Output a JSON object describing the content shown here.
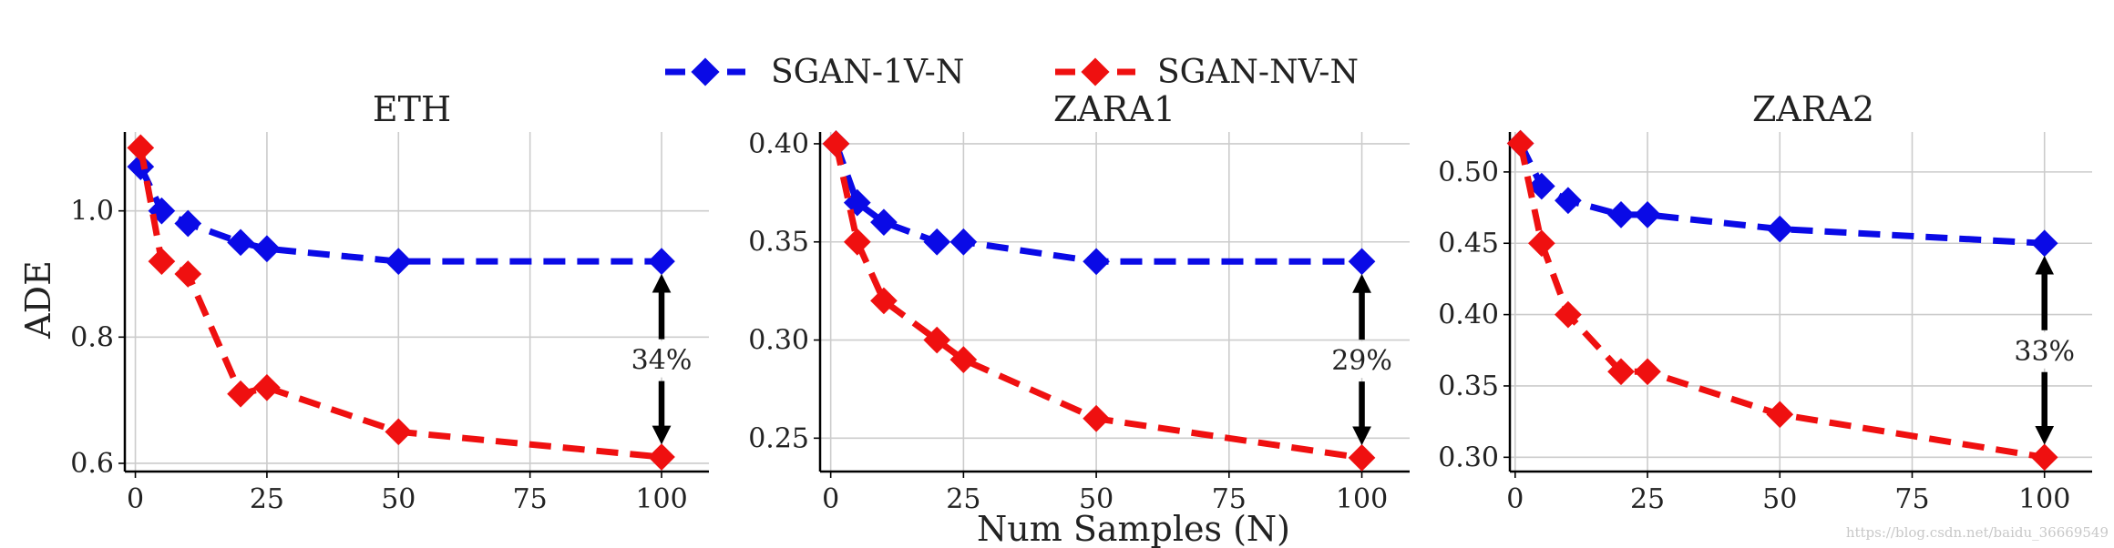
{
  "colors": {
    "series_1v": "#0a0ae6",
    "series_nv": "#ef1010",
    "grid": "#cccccc",
    "axis": "#000000",
    "arrow": "#000000"
  },
  "legend": [
    {
      "name": "SGAN-1V-N",
      "color": "#0a0ae6"
    },
    {
      "name": "SGAN-NV-N",
      "color": "#ef1010"
    }
  ],
  "shared_ylabel": "ADE",
  "shared_xlabel": "Num Samples (N)",
  "watermark": "https://blog.csdn.net/baidu_36669549",
  "chart_data": [
    {
      "type": "line",
      "title": "ETH",
      "ylabel": "ADE",
      "xlabel": "",
      "xlim": [
        -2,
        109
      ],
      "ylim": [
        0.587,
        1.125
      ],
      "xticks": [
        0,
        25,
        50,
        75,
        100
      ],
      "xtick_labels": [
        "0",
        "25",
        "50",
        "75",
        "100"
      ],
      "yticks": [
        0.6,
        0.8,
        1.0
      ],
      "ytick_labels": [
        "0.6",
        "0.8",
        "1.0"
      ],
      "x": [
        1,
        5,
        10,
        20,
        25,
        50,
        100
      ],
      "series": [
        {
          "name": "SGAN-1V-N",
          "values": [
            1.07,
            1.0,
            0.98,
            0.95,
            0.94,
            0.92,
            0.92
          ]
        },
        {
          "name": "SGAN-NV-N",
          "values": [
            1.1,
            0.92,
            0.9,
            0.71,
            0.72,
            0.65,
            0.61
          ]
        }
      ],
      "annotation": {
        "text": "34%",
        "x": 100,
        "from": 0.92,
        "to": 0.61
      }
    },
    {
      "type": "line",
      "title": "ZARA1",
      "ylabel": "",
      "xlabel": "Num Samples (N)",
      "xlim": [
        -2,
        109
      ],
      "ylim": [
        0.233,
        0.406
      ],
      "xticks": [
        0,
        25,
        50,
        75,
        100
      ],
      "xtick_labels": [
        "0",
        "25",
        "50",
        "75",
        "100"
      ],
      "yticks": [
        0.25,
        0.3,
        0.35,
        0.4
      ],
      "ytick_labels": [
        "0.25",
        "0.30",
        "0.35",
        "0.40"
      ],
      "x": [
        1,
        5,
        10,
        20,
        25,
        50,
        100
      ],
      "series": [
        {
          "name": "SGAN-1V-N",
          "values": [
            0.4,
            0.37,
            0.36,
            0.35,
            0.35,
            0.34,
            0.34
          ]
        },
        {
          "name": "SGAN-NV-N",
          "values": [
            0.4,
            0.35,
            0.32,
            0.3,
            0.29,
            0.26,
            0.24
          ]
        }
      ],
      "annotation": {
        "text": "29%",
        "x": 100,
        "from": 0.34,
        "to": 0.24
      }
    },
    {
      "type": "line",
      "title": "ZARA2",
      "ylabel": "",
      "xlabel": "",
      "xlim": [
        -1,
        109
      ],
      "ylim": [
        0.29,
        0.528
      ],
      "xticks": [
        0,
        25,
        50,
        75,
        100
      ],
      "xtick_labels": [
        "0",
        "25",
        "50",
        "75",
        "100"
      ],
      "yticks": [
        0.3,
        0.35,
        0.4,
        0.45,
        0.5
      ],
      "ytick_labels": [
        "0.30",
        "0.35",
        "0.40",
        "0.45",
        "0.50"
      ],
      "x": [
        1,
        5,
        10,
        20,
        25,
        50,
        100
      ],
      "series": [
        {
          "name": "SGAN-1V-N",
          "values": [
            0.52,
            0.49,
            0.48,
            0.47,
            0.47,
            0.46,
            0.45
          ]
        },
        {
          "name": "SGAN-NV-N",
          "values": [
            0.52,
            0.45,
            0.4,
            0.36,
            0.36,
            0.33,
            0.3
          ]
        }
      ],
      "annotation": {
        "text": "33%",
        "x": 100,
        "from": 0.45,
        "to": 0.3
      }
    }
  ]
}
